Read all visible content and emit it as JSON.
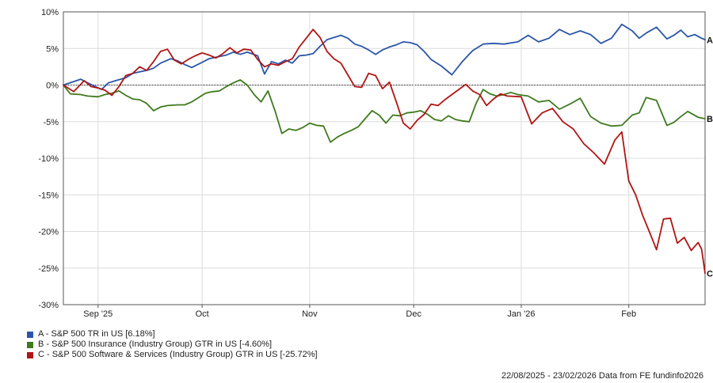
{
  "chart_data": {
    "type": "line",
    "y_unit": "%",
    "ylim": [
      -30,
      10
    ],
    "y_ticks": [
      10,
      5,
      0,
      -5,
      -10,
      -15,
      -20,
      -25,
      -30
    ],
    "y_tick_labels": [
      "10%",
      "5%",
      "0%",
      "-5%",
      "-10%",
      "-15%",
      "-20%",
      "-25%",
      "-30%"
    ],
    "x_tick_labels": [
      "Sep '25",
      "Oct",
      "Nov",
      "Dec",
      "Jan '26",
      "Feb"
    ],
    "x_tick_dates": [
      "2025-09-01",
      "2025-10-01",
      "2025-11-01",
      "2025-12-01",
      "2026-01-01",
      "2026-02-01"
    ],
    "x_range": [
      "2025-08-22",
      "2026-02-23"
    ],
    "grid": true,
    "series": [
      {
        "name": "A - S&P 500 TR in US [6.18%]",
        "end_label": "A",
        "color": "#2b55a8",
        "points": [
          [
            "2025-08-22",
            0.0
          ],
          [
            "2025-08-27",
            0.8
          ],
          [
            "2025-08-29",
            0.3
          ],
          [
            "2025-09-02",
            -0.6
          ],
          [
            "2025-09-04",
            0.3
          ],
          [
            "2025-09-06",
            0.6
          ],
          [
            "2025-09-09",
            1.0
          ],
          [
            "2025-09-11",
            1.6
          ],
          [
            "2025-09-13",
            1.8
          ],
          [
            "2025-09-15",
            2.0
          ],
          [
            "2025-09-17",
            2.3
          ],
          [
            "2025-09-19",
            3.0
          ],
          [
            "2025-09-22",
            3.6
          ],
          [
            "2025-09-24",
            3.3
          ],
          [
            "2025-09-26",
            2.8
          ],
          [
            "2025-09-28",
            2.4
          ],
          [
            "2025-10-01",
            3.1
          ],
          [
            "2025-10-03",
            3.6
          ],
          [
            "2025-10-06",
            3.9
          ],
          [
            "2025-10-08",
            4.1
          ],
          [
            "2025-10-10",
            4.5
          ],
          [
            "2025-10-12",
            4.2
          ],
          [
            "2025-10-14",
            4.5
          ],
          [
            "2025-10-17",
            4.0
          ],
          [
            "2025-10-19",
            1.5
          ],
          [
            "2025-10-21",
            3.2
          ],
          [
            "2025-10-23",
            2.9
          ],
          [
            "2025-10-25",
            3.4
          ],
          [
            "2025-10-27",
            3.0
          ],
          [
            "2025-10-29",
            4.0
          ],
          [
            "2025-10-31",
            4.1
          ],
          [
            "2025-11-02",
            4.3
          ],
          [
            "2025-11-04",
            5.3
          ],
          [
            "2025-11-06",
            6.2
          ],
          [
            "2025-11-08",
            6.5
          ],
          [
            "2025-11-10",
            6.8
          ],
          [
            "2025-11-12",
            6.4
          ],
          [
            "2025-11-14",
            5.6
          ],
          [
            "2025-11-16",
            5.3
          ],
          [
            "2025-11-18",
            4.8
          ],
          [
            "2025-11-20",
            4.2
          ],
          [
            "2025-11-22",
            4.8
          ],
          [
            "2025-11-24",
            5.2
          ],
          [
            "2025-11-26",
            5.5
          ],
          [
            "2025-11-28",
            5.9
          ],
          [
            "2025-11-30",
            5.8
          ],
          [
            "2025-12-02",
            5.5
          ],
          [
            "2025-12-04",
            4.6
          ],
          [
            "2025-12-06",
            3.5
          ],
          [
            "2025-12-09",
            2.6
          ],
          [
            "2025-12-12",
            1.4
          ],
          [
            "2025-12-15",
            3.2
          ],
          [
            "2025-12-18",
            4.7
          ],
          [
            "2025-12-21",
            5.6
          ],
          [
            "2025-12-24",
            5.7
          ],
          [
            "2025-12-27",
            5.6
          ],
          [
            "2025-12-31",
            5.9
          ],
          [
            "2026-01-03",
            6.8
          ],
          [
            "2026-01-06",
            5.9
          ],
          [
            "2026-01-09",
            6.4
          ],
          [
            "2026-01-12",
            7.6
          ],
          [
            "2026-01-15",
            6.9
          ],
          [
            "2026-01-18",
            7.4
          ],
          [
            "2026-01-21",
            6.9
          ],
          [
            "2026-01-24",
            5.7
          ],
          [
            "2026-01-27",
            6.4
          ],
          [
            "2026-01-30",
            8.3
          ],
          [
            "2026-02-02",
            7.4
          ],
          [
            "2026-02-04",
            6.4
          ],
          [
            "2026-02-06",
            7.1
          ],
          [
            "2026-02-09",
            7.9
          ],
          [
            "2026-02-12",
            6.3
          ],
          [
            "2026-02-14",
            6.8
          ],
          [
            "2026-02-16",
            7.5
          ],
          [
            "2026-02-18",
            6.6
          ],
          [
            "2026-02-20",
            6.9
          ],
          [
            "2026-02-22",
            6.4
          ],
          [
            "2026-02-23",
            6.18
          ]
        ]
      },
      {
        "name": "B - S&P 500 Insurance (Industry Group) GTR in US [-4.60%]",
        "end_label": "B",
        "color": "#3f7a1e",
        "points": [
          [
            "2025-08-22",
            0.0
          ],
          [
            "2025-08-24",
            -1.2
          ],
          [
            "2025-08-27",
            -1.3
          ],
          [
            "2025-08-29",
            -1.5
          ],
          [
            "2025-09-01",
            -1.6
          ],
          [
            "2025-09-03",
            -1.3
          ],
          [
            "2025-09-05",
            -1.1
          ],
          [
            "2025-09-07",
            -0.8
          ],
          [
            "2025-09-09",
            -1.4
          ],
          [
            "2025-09-11",
            -1.9
          ],
          [
            "2025-09-13",
            -2.0
          ],
          [
            "2025-09-15",
            -2.5
          ],
          [
            "2025-09-17",
            -3.5
          ],
          [
            "2025-09-19",
            -3.0
          ],
          [
            "2025-09-21",
            -2.8
          ],
          [
            "2025-09-24",
            -2.7
          ],
          [
            "2025-09-26",
            -2.7
          ],
          [
            "2025-09-28",
            -2.3
          ],
          [
            "2025-09-30",
            -1.7
          ],
          [
            "2025-10-02",
            -1.1
          ],
          [
            "2025-10-04",
            -0.9
          ],
          [
            "2025-10-06",
            -0.8
          ],
          [
            "2025-10-08",
            -0.2
          ],
          [
            "2025-10-10",
            0.3
          ],
          [
            "2025-10-12",
            0.7
          ],
          [
            "2025-10-14",
            0.0
          ],
          [
            "2025-10-16",
            -1.3
          ],
          [
            "2025-10-18",
            -2.3
          ],
          [
            "2025-10-20",
            -0.8
          ],
          [
            "2025-10-22",
            -3.5
          ],
          [
            "2025-10-24",
            -6.6
          ],
          [
            "2025-10-26",
            -6.0
          ],
          [
            "2025-10-28",
            -6.2
          ],
          [
            "2025-10-30",
            -5.8
          ],
          [
            "2025-11-01",
            -5.2
          ],
          [
            "2025-11-03",
            -5.5
          ],
          [
            "2025-11-05",
            -5.6
          ],
          [
            "2025-11-07",
            -7.8
          ],
          [
            "2025-11-09",
            -7.1
          ],
          [
            "2025-11-11",
            -6.6
          ],
          [
            "2025-11-13",
            -6.2
          ],
          [
            "2025-11-15",
            -5.7
          ],
          [
            "2025-11-17",
            -4.6
          ],
          [
            "2025-11-19",
            -3.5
          ],
          [
            "2025-11-21",
            -4.1
          ],
          [
            "2025-11-23",
            -5.2
          ],
          [
            "2025-11-25",
            -4.1
          ],
          [
            "2025-11-27",
            -4.2
          ],
          [
            "2025-11-29",
            -3.8
          ],
          [
            "2025-12-01",
            -3.7
          ],
          [
            "2025-12-03",
            -3.5
          ],
          [
            "2025-12-05",
            -4.0
          ],
          [
            "2025-12-07",
            -4.7
          ],
          [
            "2025-12-09",
            -4.9
          ],
          [
            "2025-12-11",
            -4.2
          ],
          [
            "2025-12-13",
            -4.7
          ],
          [
            "2025-12-15",
            -4.9
          ],
          [
            "2025-12-17",
            -5.0
          ],
          [
            "2025-12-19",
            -2.5
          ],
          [
            "2025-12-21",
            -0.6
          ],
          [
            "2025-12-23",
            -1.2
          ],
          [
            "2025-12-25",
            -1.5
          ],
          [
            "2025-12-27",
            -1.3
          ],
          [
            "2025-12-29",
            -1.0
          ],
          [
            "2025-12-31",
            -1.3
          ],
          [
            "2026-01-03",
            -1.5
          ],
          [
            "2026-01-06",
            -2.3
          ],
          [
            "2026-01-09",
            -2.1
          ],
          [
            "2026-01-12",
            -3.3
          ],
          [
            "2026-01-15",
            -2.6
          ],
          [
            "2026-01-18",
            -1.8
          ],
          [
            "2026-01-21",
            -4.3
          ],
          [
            "2026-01-24",
            -5.2
          ],
          [
            "2026-01-27",
            -5.6
          ],
          [
            "2026-01-30",
            -5.5
          ],
          [
            "2026-02-02",
            -4.1
          ],
          [
            "2026-02-04",
            -3.8
          ],
          [
            "2026-02-06",
            -1.7
          ],
          [
            "2026-02-09",
            -2.1
          ],
          [
            "2026-02-12",
            -5.5
          ],
          [
            "2026-02-14",
            -5.1
          ],
          [
            "2026-02-16",
            -4.3
          ],
          [
            "2026-02-18",
            -3.6
          ],
          [
            "2026-02-21",
            -4.4
          ],
          [
            "2026-02-23",
            -4.6
          ]
        ]
      },
      {
        "name": "C - S&P 500 Software & Services (Industry Group) GTR in US [-25.72%]",
        "end_label": "C",
        "color": "#b01515",
        "points": [
          [
            "2025-08-22",
            0.0
          ],
          [
            "2025-08-25",
            -0.9
          ],
          [
            "2025-08-28",
            0.6
          ],
          [
            "2025-08-30",
            -0.2
          ],
          [
            "2025-09-01",
            -0.4
          ],
          [
            "2025-09-03",
            -0.7
          ],
          [
            "2025-09-05",
            -1.4
          ],
          [
            "2025-09-07",
            -0.2
          ],
          [
            "2025-09-09",
            1.3
          ],
          [
            "2025-09-11",
            1.6
          ],
          [
            "2025-09-13",
            2.5
          ],
          [
            "2025-09-15",
            2.0
          ],
          [
            "2025-09-17",
            3.2
          ],
          [
            "2025-09-19",
            4.6
          ],
          [
            "2025-09-21",
            4.9
          ],
          [
            "2025-09-23",
            3.4
          ],
          [
            "2025-09-25",
            2.9
          ],
          [
            "2025-09-27",
            3.5
          ],
          [
            "2025-09-29",
            4.0
          ],
          [
            "2025-10-01",
            4.4
          ],
          [
            "2025-10-03",
            4.1
          ],
          [
            "2025-10-05",
            3.7
          ],
          [
            "2025-10-07",
            4.3
          ],
          [
            "2025-10-09",
            5.1
          ],
          [
            "2025-10-11",
            4.4
          ],
          [
            "2025-10-13",
            4.9
          ],
          [
            "2025-10-15",
            4.8
          ],
          [
            "2025-10-17",
            3.5
          ],
          [
            "2025-10-19",
            2.5
          ],
          [
            "2025-10-21",
            2.9
          ],
          [
            "2025-10-23",
            2.7
          ],
          [
            "2025-10-25",
            3.2
          ],
          [
            "2025-10-27",
            3.6
          ],
          [
            "2025-10-29",
            5.2
          ],
          [
            "2025-10-31",
            6.4
          ],
          [
            "2025-11-02",
            7.6
          ],
          [
            "2025-11-04",
            6.5
          ],
          [
            "2025-11-06",
            4.6
          ],
          [
            "2025-11-08",
            3.6
          ],
          [
            "2025-11-10",
            3.0
          ],
          [
            "2025-11-12",
            1.4
          ],
          [
            "2025-11-14",
            -0.2
          ],
          [
            "2025-11-16",
            -0.3
          ],
          [
            "2025-11-18",
            1.6
          ],
          [
            "2025-11-20",
            1.3
          ],
          [
            "2025-11-22",
            -0.5
          ],
          [
            "2025-11-24",
            0.4
          ],
          [
            "2025-11-26",
            -2.3
          ],
          [
            "2025-11-28",
            -5.2
          ],
          [
            "2025-11-30",
            -6.0
          ],
          [
            "2025-12-02",
            -4.8
          ],
          [
            "2025-12-04",
            -4.0
          ],
          [
            "2025-12-06",
            -2.6
          ],
          [
            "2025-12-08",
            -2.8
          ],
          [
            "2025-12-10",
            -2.0
          ],
          [
            "2025-12-12",
            -1.3
          ],
          [
            "2025-12-14",
            -0.6
          ],
          [
            "2025-12-16",
            0.1
          ],
          [
            "2025-12-18",
            -0.8
          ],
          [
            "2025-12-20",
            -1.3
          ],
          [
            "2025-12-22",
            -2.8
          ],
          [
            "2025-12-24",
            -1.9
          ],
          [
            "2025-12-26",
            -1.2
          ],
          [
            "2025-12-28",
            -1.5
          ],
          [
            "2026-01-01",
            -1.6
          ],
          [
            "2026-01-04",
            -5.3
          ],
          [
            "2026-01-07",
            -3.8
          ],
          [
            "2026-01-10",
            -3.2
          ],
          [
            "2026-01-13",
            -5.0
          ],
          [
            "2026-01-16",
            -6.0
          ],
          [
            "2026-01-19",
            -8.0
          ],
          [
            "2026-01-22",
            -9.3
          ],
          [
            "2026-01-25",
            -10.8
          ],
          [
            "2026-01-28",
            -7.5
          ],
          [
            "2026-01-30",
            -6.4
          ],
          [
            "2026-02-01",
            -13.1
          ],
          [
            "2026-02-03",
            -15.0
          ],
          [
            "2026-02-05",
            -17.8
          ],
          [
            "2026-02-07",
            -20.1
          ],
          [
            "2026-02-09",
            -22.5
          ],
          [
            "2026-02-11",
            -18.3
          ],
          [
            "2026-02-13",
            -18.2
          ],
          [
            "2026-02-15",
            -21.6
          ],
          [
            "2026-02-17",
            -20.8
          ],
          [
            "2026-02-19",
            -22.6
          ],
          [
            "2026-02-21",
            -21.5
          ],
          [
            "2026-02-22",
            -22.4
          ],
          [
            "2026-02-23",
            -25.72
          ]
        ]
      }
    ]
  },
  "legend": [
    {
      "color": "#2b55a8",
      "label": "A - S&P 500 TR in US [6.18%]"
    },
    {
      "color": "#3f7a1e",
      "label": "B - S&P 500 Insurance (Industry Group) GTR in US [-4.60%]"
    },
    {
      "color": "#b01515",
      "label": "C - S&P 500 Software & Services (Industry Group) GTR in US [-25.72%]"
    }
  ],
  "footer": "22/08/2025 - 23/02/2026 Data from FE fundinfo2026"
}
